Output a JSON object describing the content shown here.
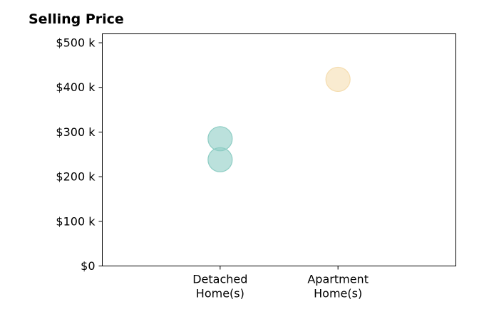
{
  "chart_data": {
    "type": "scatter",
    "title": "Selling Price",
    "xlabel": "",
    "ylabel": "",
    "categories": [
      [
        "Detached",
        "Home(s)"
      ],
      [
        "Apartment",
        "Home(s)"
      ]
    ],
    "xlim": [
      0,
      3
    ],
    "ylim": [
      0,
      520000
    ],
    "yticks": [
      0,
      100000,
      200000,
      300000,
      400000,
      500000
    ],
    "ytick_labels": [
      "$0",
      "$100 k",
      "$200 k",
      "$300 k",
      "$400 k",
      "$500 k"
    ],
    "grid": false,
    "legend": "none",
    "points": [
      {
        "category": 1,
        "value": 285000,
        "color": "#8ecdc4"
      },
      {
        "category": 1,
        "value": 238000,
        "color": "#8ecdc4"
      },
      {
        "category": 2,
        "value": 418000,
        "color": "#f5ddb0"
      }
    ]
  }
}
